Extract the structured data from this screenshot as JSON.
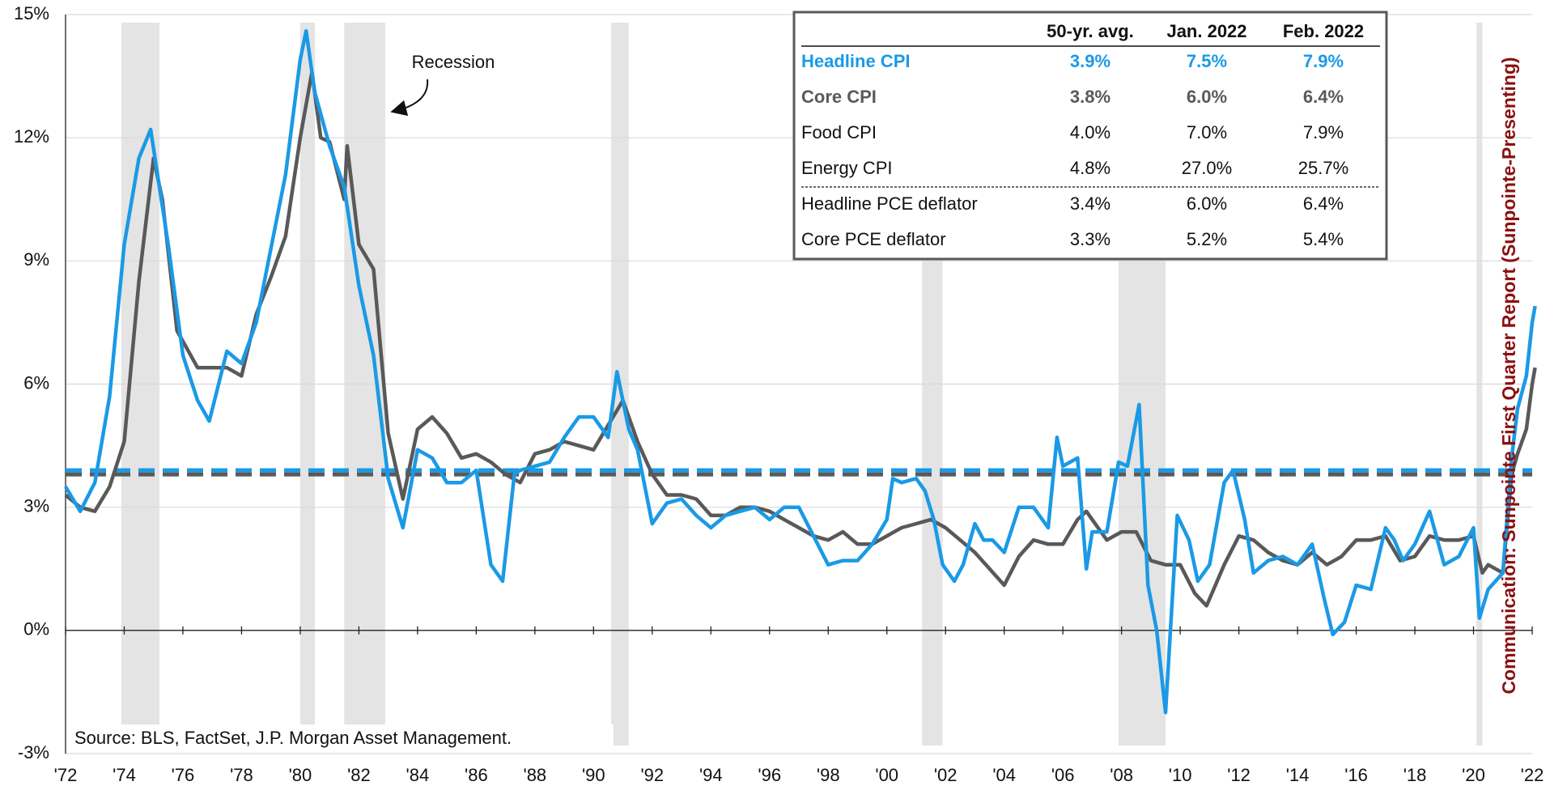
{
  "chart_data": {
    "type": "line",
    "series": [
      {
        "name": "Headline CPI",
        "color": "#1a9ae6",
        "x": [
          1972.0,
          1972.5,
          1973.0,
          1973.5,
          1974.0,
          1974.5,
          1974.9,
          1975.5,
          1976.0,
          1976.5,
          1976.9,
          1977.5,
          1978.0,
          1978.5,
          1979.0,
          1979.5,
          1980.0,
          1980.2,
          1980.5,
          1981.0,
          1981.5,
          1982.0,
          1982.5,
          1983.0,
          1983.5,
          1984.0,
          1984.5,
          1985.0,
          1985.5,
          1986.0,
          1986.5,
          1986.9,
          1987.3,
          1987.5,
          1988.0,
          1988.5,
          1989.0,
          1989.5,
          1990.0,
          1990.5,
          1990.8,
          1991.2,
          1991.5,
          1992.0,
          1992.5,
          1993.0,
          1993.5,
          1994.0,
          1994.5,
          1995.0,
          1995.5,
          1996.0,
          1996.5,
          1997.0,
          1997.5,
          1998.0,
          1998.5,
          1999.0,
          1999.5,
          2000.0,
          2000.2,
          2000.5,
          2001.0,
          2001.3,
          2001.6,
          2001.9,
          2002.3,
          2002.6,
          2003.0,
          2003.3,
          2003.6,
          2004.0,
          2004.5,
          2005.0,
          2005.5,
          2005.8,
          2006.0,
          2006.5,
          2006.8,
          2007.0,
          2007.5,
          2007.9,
          2008.2,
          2008.6,
          2008.9,
          2009.2,
          2009.5,
          2009.9,
          2010.3,
          2010.6,
          2011.0,
          2011.5,
          2011.8,
          2012.2,
          2012.5,
          2013.0,
          2013.5,
          2014.0,
          2014.5,
          2014.9,
          2015.2,
          2015.6,
          2016.0,
          2016.5,
          2017.0,
          2017.3,
          2017.6,
          2018.0,
          2018.5,
          2019.0,
          2019.5,
          2020.0,
          2020.2,
          2020.5,
          2021.0,
          2021.3,
          2021.5,
          2021.8,
          2022.0,
          2022.1
        ],
        "values": [
          3.5,
          2.9,
          3.6,
          5.7,
          9.4,
          11.5,
          12.2,
          9.4,
          6.7,
          5.6,
          5.1,
          6.8,
          6.5,
          7.5,
          9.3,
          11.1,
          13.9,
          14.6,
          13.1,
          11.8,
          10.8,
          8.4,
          6.7,
          3.7,
          2.5,
          4.4,
          4.2,
          3.6,
          3.6,
          3.9,
          1.6,
          1.2,
          3.8,
          3.9,
          4.0,
          4.1,
          4.7,
          5.2,
          5.2,
          4.7,
          6.3,
          4.9,
          4.4,
          2.6,
          3.1,
          3.2,
          2.8,
          2.5,
          2.8,
          2.9,
          3.0,
          2.7,
          3.0,
          3.0,
          2.3,
          1.6,
          1.7,
          1.7,
          2.1,
          2.7,
          3.7,
          3.6,
          3.7,
          3.4,
          2.7,
          1.6,
          1.2,
          1.6,
          2.6,
          2.2,
          2.2,
          1.9,
          3.0,
          3.0,
          2.5,
          4.7,
          4.0,
          4.2,
          1.5,
          2.4,
          2.4,
          4.1,
          4.0,
          5.5,
          1.1,
          0.0,
          -2.0,
          2.8,
          2.2,
          1.2,
          1.6,
          3.6,
          3.9,
          2.7,
          1.4,
          1.7,
          1.8,
          1.6,
          2.1,
          0.8,
          -0.1,
          0.2,
          1.1,
          1.0,
          2.5,
          2.2,
          1.7,
          2.1,
          2.9,
          1.6,
          1.8,
          2.5,
          0.3,
          1.0,
          1.4,
          4.2,
          5.4,
          6.2,
          7.5,
          7.9
        ]
      },
      {
        "name": "Core CPI",
        "color": "#595959",
        "x": [
          1972.0,
          1972.5,
          1973.0,
          1973.5,
          1974.0,
          1974.5,
          1975.0,
          1975.3,
          1975.8,
          1976.5,
          1977.0,
          1977.5,
          1978.0,
          1978.5,
          1979.0,
          1979.5,
          1980.0,
          1980.4,
          1980.7,
          1981.0,
          1981.5,
          1981.6,
          1982.0,
          1982.5,
          1983.0,
          1983.5,
          1984.0,
          1984.5,
          1985.0,
          1985.5,
          1986.0,
          1986.5,
          1987.0,
          1987.5,
          1988.0,
          1988.5,
          1989.0,
          1989.5,
          1990.0,
          1990.5,
          1991.0,
          1991.5,
          1992.0,
          1992.5,
          1993.0,
          1993.5,
          1994.0,
          1994.5,
          1995.0,
          1995.5,
          1996.0,
          1996.5,
          1997.0,
          1997.5,
          1998.0,
          1998.5,
          1999.0,
          1999.5,
          2000.0,
          2000.5,
          2001.0,
          2001.5,
          2002.0,
          2002.5,
          2003.0,
          2003.5,
          2004.0,
          2004.5,
          2005.0,
          2005.5,
          2006.0,
          2006.5,
          2006.8,
          2007.0,
          2007.5,
          2008.0,
          2008.5,
          2009.0,
          2009.5,
          2010.0,
          2010.5,
          2010.9,
          2011.5,
          2012.0,
          2012.5,
          2013.0,
          2013.5,
          2014.0,
          2014.5,
          2015.0,
          2015.5,
          2016.0,
          2016.5,
          2017.0,
          2017.5,
          2018.0,
          2018.5,
          2019.0,
          2019.5,
          2020.0,
          2020.3,
          2020.5,
          2021.0,
          2021.3,
          2021.5,
          2021.8,
          2022.0,
          2022.1
        ],
        "values": [
          3.3,
          3.0,
          2.9,
          3.5,
          4.6,
          8.5,
          11.5,
          10.5,
          7.3,
          6.4,
          6.4,
          6.4,
          6.2,
          7.7,
          8.6,
          9.6,
          12.0,
          13.6,
          12.0,
          11.9,
          10.5,
          11.8,
          9.4,
          8.8,
          4.8,
          3.2,
          4.9,
          5.2,
          4.8,
          4.2,
          4.3,
          4.1,
          3.8,
          3.6,
          4.3,
          4.4,
          4.6,
          4.5,
          4.4,
          5.0,
          5.6,
          4.6,
          3.8,
          3.3,
          3.3,
          3.2,
          2.8,
          2.8,
          3.0,
          3.0,
          2.9,
          2.7,
          2.5,
          2.3,
          2.2,
          2.4,
          2.1,
          2.1,
          2.3,
          2.5,
          2.6,
          2.7,
          2.5,
          2.2,
          1.9,
          1.5,
          1.1,
          1.8,
          2.2,
          2.1,
          2.1,
          2.7,
          2.9,
          2.7,
          2.2,
          2.4,
          2.4,
          1.7,
          1.6,
          1.6,
          0.9,
          0.6,
          1.6,
          2.3,
          2.2,
          1.9,
          1.7,
          1.6,
          1.9,
          1.6,
          1.8,
          2.2,
          2.2,
          2.3,
          1.7,
          1.8,
          2.3,
          2.2,
          2.2,
          2.3,
          1.4,
          1.6,
          1.4,
          3.8,
          4.3,
          4.9,
          6.0,
          6.4
        ]
      }
    ],
    "averages": [
      {
        "color": "#1a9ae6",
        "value": 3.9
      },
      {
        "color": "#595959",
        "value": 3.8
      }
    ],
    "recessions": [
      [
        1973.9,
        1975.2
      ],
      [
        1980.0,
        1980.5
      ],
      [
        1981.5,
        1982.9
      ],
      [
        1990.6,
        1991.2
      ],
      [
        2001.2,
        2001.9
      ],
      [
        2007.9,
        2009.5
      ],
      [
        2020.1,
        2020.3
      ]
    ],
    "xlim": [
      1972,
      2022
    ],
    "xticks": [
      {
        "value": 1972,
        "label": "'72"
      },
      {
        "value": 1974,
        "label": "'74"
      },
      {
        "value": 1976,
        "label": "'76"
      },
      {
        "value": 1978,
        "label": "'78"
      },
      {
        "value": 1980,
        "label": "'80"
      },
      {
        "value": 1982,
        "label": "'82"
      },
      {
        "value": 1984,
        "label": "'84"
      },
      {
        "value": 1986,
        "label": "'86"
      },
      {
        "value": 1988,
        "label": "'88"
      },
      {
        "value": 1990,
        "label": "'90"
      },
      {
        "value": 1992,
        "label": "'92"
      },
      {
        "value": 1994,
        "label": "'94"
      },
      {
        "value": 1996,
        "label": "'96"
      },
      {
        "value": 1998,
        "label": "'98"
      },
      {
        "value": 2000,
        "label": "'00"
      },
      {
        "value": 2002,
        "label": "'02"
      },
      {
        "value": 2004,
        "label": "'04"
      },
      {
        "value": 2006,
        "label": "'06"
      },
      {
        "value": 2008,
        "label": "'08"
      },
      {
        "value": 2010,
        "label": "'10"
      },
      {
        "value": 2012,
        "label": "'12"
      },
      {
        "value": 2014,
        "label": "'14"
      },
      {
        "value": 2016,
        "label": "'16"
      },
      {
        "value": 2018,
        "label": "'18"
      },
      {
        "value": 2020,
        "label": "'20"
      },
      {
        "value": 2022,
        "label": "'22"
      }
    ],
    "ylim": [
      -3,
      15
    ],
    "yticks": [
      {
        "value": -3,
        "label": "-3%"
      },
      {
        "value": 0,
        "label": "0%"
      },
      {
        "value": 3,
        "label": "3%"
      },
      {
        "value": 6,
        "label": "6%"
      },
      {
        "value": 9,
        "label": "9%"
      },
      {
        "value": 12,
        "label": "12%"
      },
      {
        "value": 15,
        "label": "15%"
      }
    ],
    "grid": true,
    "annotation": "Recession",
    "source": "Source: BLS, FactSet, J.P. Morgan Asset Management.",
    "side_note": "Communication: Sunpointe First Quarter Report  (Sunpointe-Presenting)",
    "table": {
      "header": [
        "50-yr. avg.",
        "Jan. 2022",
        "Feb. 2022"
      ],
      "rows": [
        {
          "name": "Headline CPI",
          "color": "#1a9ae6",
          "bold": true,
          "cells": [
            "3.9%",
            "7.5%",
            "7.9%"
          ]
        },
        {
          "name": "Core CPI",
          "color": "#595959",
          "bold": true,
          "cells": [
            "3.8%",
            "6.0%",
            "6.4%"
          ]
        },
        {
          "name": "Food CPI",
          "cells": [
            "4.0%",
            "7.0%",
            "7.9%"
          ]
        },
        {
          "name": "Energy CPI",
          "cells": [
            "4.8%",
            "27.0%",
            "25.7%"
          ]
        },
        {
          "name": "Headline PCE deflator",
          "cells": [
            "3.4%",
            "6.0%",
            "6.4%"
          ]
        },
        {
          "name": "Core PCE deflator",
          "cells": [
            "3.3%",
            "5.2%",
            "5.4%"
          ]
        }
      ]
    }
  }
}
